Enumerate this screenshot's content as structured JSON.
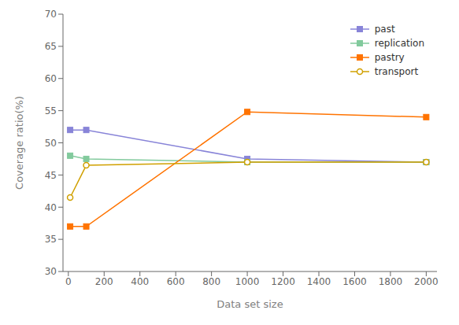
{
  "chart_data": {
    "type": "line",
    "x": [
      10,
      100,
      1000,
      2000
    ],
    "series": [
      {
        "name": "past",
        "color": "#8884d8",
        "marker": "square",
        "values": [
          52.0,
          52.0,
          47.5,
          47.0
        ]
      },
      {
        "name": "replication",
        "color": "#82ca9d",
        "marker": "square",
        "values": [
          48.0,
          47.5,
          47.0,
          47.0
        ]
      },
      {
        "name": "pastry",
        "color": "#ff7300",
        "marker": "square",
        "values": [
          37.0,
          37.0,
          54.8,
          54.0
        ]
      },
      {
        "name": "transport",
        "color": "#d0a000",
        "marker": "circle",
        "values": [
          41.5,
          46.5,
          47.0,
          47.0
        ]
      }
    ],
    "xlabel": "Data set size",
    "ylabel": "Coverage ratio(%)",
    "xlim": [
      -30,
      2060
    ],
    "xticks": [
      0,
      200,
      400,
      600,
      800,
      1000,
      1200,
      1400,
      1600,
      1800,
      2000
    ],
    "ylim": [
      30,
      70
    ],
    "yticks": [
      30,
      35,
      40,
      45,
      50,
      55,
      60,
      65,
      70
    ],
    "grid": false,
    "legend": "upper right"
  }
}
